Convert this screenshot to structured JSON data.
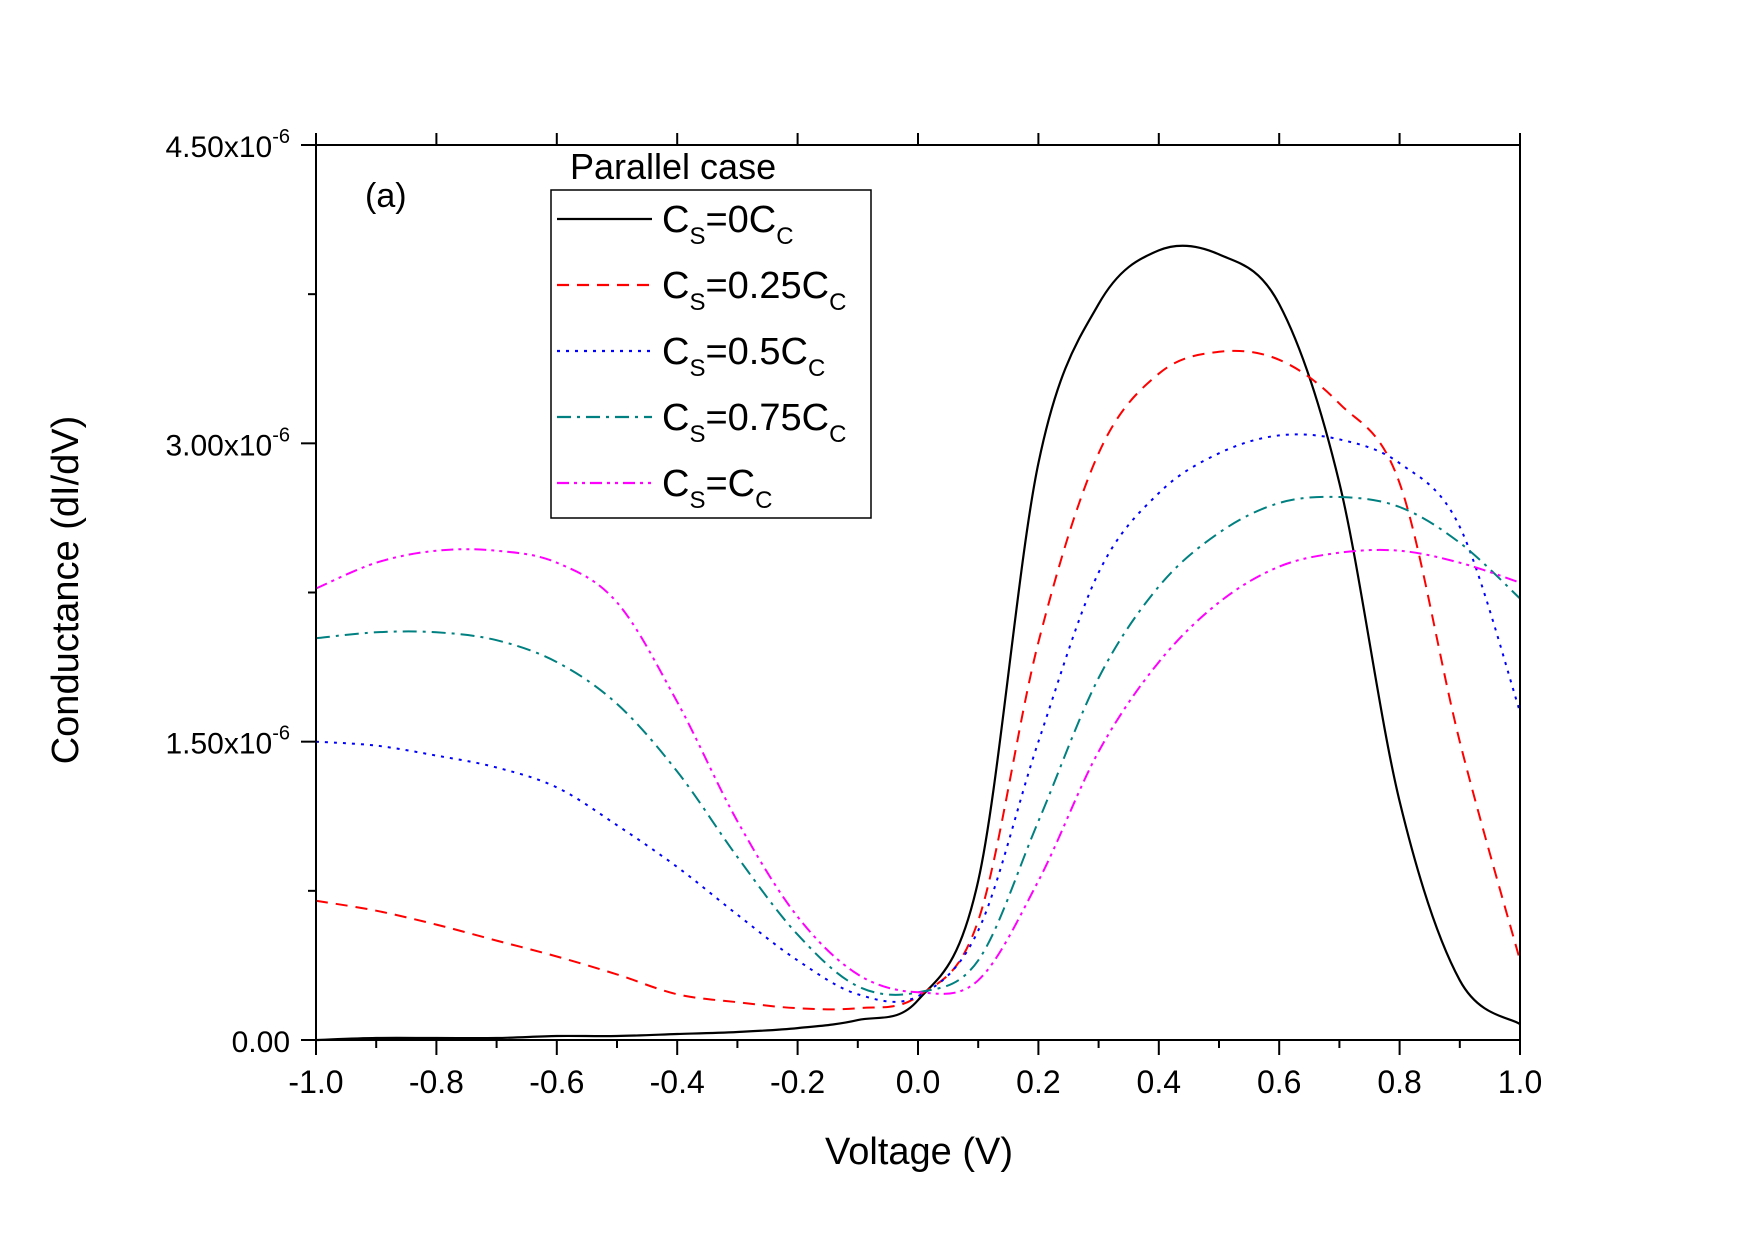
{
  "chart_data": {
    "type": "line",
    "panel_label": "(a)",
    "xlabel": "Voltage (V)",
    "ylabel": "Conductance (dI/dV)",
    "xlim": [
      -1.0,
      1.0
    ],
    "ylim": [
      0,
      4.5e-06
    ],
    "x_ticks": [
      -1.0,
      -0.8,
      -0.6,
      -0.4,
      -0.2,
      0.0,
      0.2,
      0.4,
      0.6,
      0.8,
      1.0
    ],
    "x_tick_labels": [
      "-1.0",
      "-0.8",
      "-0.6",
      "-0.4",
      "-0.2",
      "0.0",
      "0.2",
      "0.4",
      "0.6",
      "0.8",
      "1.0"
    ],
    "y_ticks": [
      0,
      1.5e-06,
      3e-06,
      4.5e-06
    ],
    "y_tick_labels": [
      {
        "mantissa": "0.00",
        "exp": ""
      },
      {
        "mantissa": "1.50x10",
        "exp": "-6"
      },
      {
        "mantissa": "3.00x10",
        "exp": "-6"
      },
      {
        "mantissa": "4.50x10",
        "exp": "-6"
      }
    ],
    "legend_title": "Parallel case",
    "legend_position": "top-left",
    "x": [
      -1.0,
      -0.9,
      -0.8,
      -0.7,
      -0.6,
      -0.5,
      -0.4,
      -0.3,
      -0.2,
      -0.1,
      0.0,
      0.1,
      0.2,
      0.3,
      0.4,
      0.5,
      0.6,
      0.7,
      0.8,
      0.9,
      1.0
    ],
    "series": [
      {
        "name": "C_S=0C_C",
        "label": {
          "a": "C",
          "sub1": "S",
          "b": "=0C",
          "sub2": "C"
        },
        "color": "#000000",
        "dash": "",
        "values": [
          0.0,
          1e-08,
          1e-08,
          1e-08,
          2e-08,
          2e-08,
          3e-08,
          4e-08,
          6e-08,
          1e-07,
          2e-07,
          8e-07,
          2.9e-06,
          3.7e-06,
          3.97e-06,
          3.95e-06,
          3.7e-06,
          2.8e-06,
          1.2e-06,
          3e-07,
          8e-08
        ]
      },
      {
        "name": "C_S=0.25C_C",
        "label": {
          "a": "C",
          "sub1": "S",
          "b": "=0.25C",
          "sub2": "C"
        },
        "color": "#ff0000",
        "dash": "12 8",
        "values": [
          7e-07,
          6.5e-07,
          5.8e-07,
          5e-07,
          4.2e-07,
          3.3e-07,
          2.3e-07,
          1.9e-07,
          1.6e-07,
          1.6e-07,
          2.2e-07,
          6e-07,
          2e-06,
          2.95e-06,
          3.35e-06,
          3.46e-06,
          3.42e-06,
          3.2e-06,
          2.8e-06,
          1.5e-06,
          4e-07
        ]
      },
      {
        "name": "C_S=0.5C_C",
        "label": {
          "a": "C",
          "sub1": "S",
          "b": "=0.5C",
          "sub2": "C"
        },
        "color": "#0000ff",
        "dash": "3 6",
        "values": [
          1.5e-06,
          1.48e-06,
          1.43e-06,
          1.37e-06,
          1.27e-06,
          1.08e-06,
          8.7e-07,
          6.3e-07,
          4e-07,
          2.3e-07,
          2.2e-07,
          5.5e-07,
          1.5e-06,
          2.35e-06,
          2.75e-06,
          2.95e-06,
          3.04e-06,
          3.02e-06,
          2.9e-06,
          2.58e-06,
          1.65e-06
        ]
      },
      {
        "name": "C_S=0.75C_C",
        "label": {
          "a": "C",
          "sub1": "S",
          "b": "=0.75C",
          "sub2": "C"
        },
        "color": "#008080",
        "dash": "14 6 3 6",
        "values": [
          2.02e-06,
          2.05e-06,
          2.05e-06,
          2.01e-06,
          1.9e-06,
          1.69e-06,
          1.35e-06,
          9.2e-07,
          5.3e-07,
          2.7e-07,
          2.4e-07,
          4e-07,
          1.1e-06,
          1.82e-06,
          2.28e-06,
          2.55e-06,
          2.7e-06,
          2.73e-06,
          2.68e-06,
          2.5e-06,
          2.22e-06
        ]
      },
      {
        "name": "C_S=C_C",
        "label": {
          "a": "C",
          "sub1": "S",
          "b": "=C",
          "sub2": "C"
        },
        "color": "#ff00ff",
        "dash": "12 5 3 5 3 5",
        "values": [
          2.27e-06,
          2.4e-06,
          2.46e-06,
          2.46e-06,
          2.4e-06,
          2.2e-06,
          1.7e-06,
          1.1e-06,
          6.2e-07,
          3.3e-07,
          2.4e-07,
          3e-07,
          8e-07,
          1.45e-06,
          1.9e-06,
          2.2e-06,
          2.38e-06,
          2.45e-06,
          2.46e-06,
          2.4e-06,
          2.3e-06
        ]
      }
    ]
  }
}
